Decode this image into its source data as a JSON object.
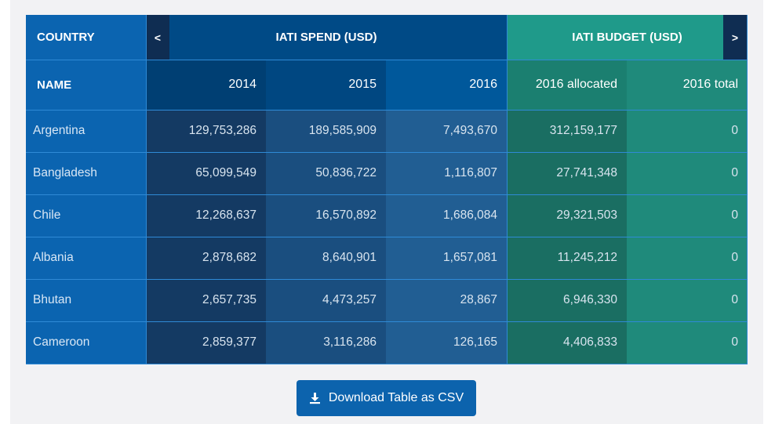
{
  "header": {
    "country": "COUNTRY",
    "spend": "IATI SPEND (USD)",
    "budget": "IATI BUDGET (USD)",
    "prev": "<",
    "next": ">"
  },
  "subheader": {
    "name": "NAME",
    "y2014": "2014",
    "y2015": "2015",
    "y2016": "2016",
    "allocated": "2016 allocated",
    "total": "2016 total"
  },
  "rows": [
    {
      "country": "Argentina",
      "s2014": "129,753,286",
      "s2015": "189,585,909",
      "s2016": "7,493,670",
      "alloc": "312,159,177",
      "total": "0"
    },
    {
      "country": "Bangladesh",
      "s2014": "65,099,549",
      "s2015": "50,836,722",
      "s2016": "1,116,807",
      "alloc": "27,741,348",
      "total": "0"
    },
    {
      "country": "Chile",
      "s2014": "12,268,637",
      "s2015": "16,570,892",
      "s2016": "1,686,084",
      "alloc": "29,321,503",
      "total": "0"
    },
    {
      "country": "Albania",
      "s2014": "2,878,682",
      "s2015": "8,640,901",
      "s2016": "1,657,081",
      "alloc": "11,245,212",
      "total": "0"
    },
    {
      "country": "Bhutan",
      "s2014": "2,657,735",
      "s2015": "4,473,257",
      "s2016": "28,867",
      "alloc": "6,946,330",
      "total": "0"
    },
    {
      "country": "Cameroon",
      "s2014": "2,859,377",
      "s2015": "3,116,286",
      "s2016": "126,165",
      "alloc": "4,406,833",
      "total": "0"
    }
  ],
  "download": {
    "label": "Download Table as CSV",
    "icon": "download-icon"
  },
  "colors": {
    "spend_header": "#004a86",
    "budget_header": "#1f9a8a",
    "button": "#0c63ad"
  }
}
